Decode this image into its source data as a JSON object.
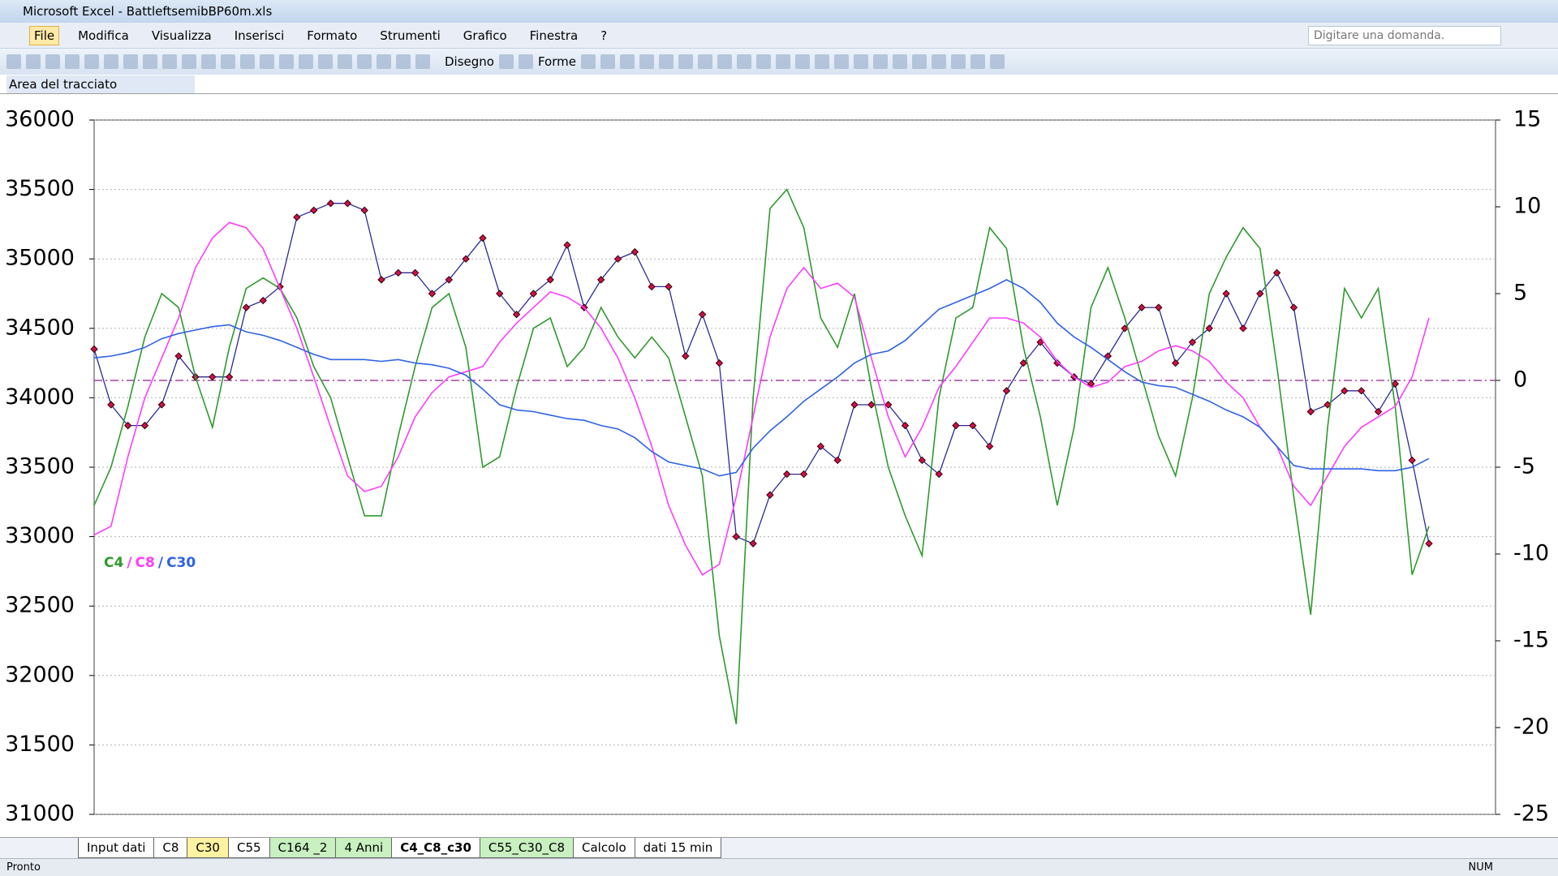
{
  "window": {
    "title": "Microsoft Excel - BattleftsemibBP60m.xls"
  },
  "menu": [
    "File",
    "Modifica",
    "Visualizza",
    "Inserisci",
    "Formato",
    "Strumenti",
    "Grafico",
    "Finestra",
    "?"
  ],
  "help_box": "Digitare una domanda.",
  "toolbar": {
    "draw": "Disegno",
    "shapes": "Forme"
  },
  "name_box": "Area del tracciato",
  "sheet_tabs": [
    {
      "label": "Input dati",
      "color": "#ffffff"
    },
    {
      "label": "C8",
      "color": "#ffffff"
    },
    {
      "label": "C30",
      "color": "#fff2a0"
    },
    {
      "label": "C55",
      "color": "#ffffff"
    },
    {
      "label": "C164 _2",
      "color": "#c8f0c0"
    },
    {
      "label": "4 Anni",
      "color": "#c8f0c0"
    },
    {
      "label": "C4_C8_c30",
      "color": "#ffffff",
      "active": true
    },
    {
      "label": "C55_C30_C8",
      "color": "#c8f0c0"
    },
    {
      "label": "Calcolo",
      "color": "#ffffff"
    },
    {
      "label": "dati 15 min",
      "color": "#ffffff"
    }
  ],
  "status": {
    "left": "Pronto",
    "right": "NUM"
  },
  "chart_data": {
    "type": "line",
    "ylim": [
      31000,
      36000
    ],
    "yticks": [
      31000,
      31500,
      32000,
      32500,
      33000,
      33500,
      34000,
      34500,
      35000,
      35500,
      36000
    ],
    "y2lim": [
      -25,
      15
    ],
    "y2ticks": [
      -25,
      -20,
      -15,
      -10,
      -5,
      0,
      5,
      10,
      15
    ],
    "grid": true,
    "reference_line": {
      "axis": "y2",
      "value": 0,
      "color": "#a040a0"
    },
    "legend_separators": [
      "/",
      "/"
    ],
    "series": [
      {
        "color": "#2a2a9a",
        "marker_color": "#d0104c",
        "values": [
          34350,
          33950,
          33800,
          33800,
          33950,
          34300,
          34150,
          34150,
          34150,
          34650,
          34700,
          34800,
          35300,
          35350,
          35400,
          35400,
          35350,
          34850,
          34900,
          34900,
          34750,
          34850,
          35000,
          35150,
          34750,
          34600,
          34750,
          34850,
          35100,
          34650,
          34850,
          35000,
          35050,
          34800,
          34800,
          34300,
          34600,
          34250,
          33000,
          32950,
          33300,
          33450,
          33450,
          33650,
          33550,
          33950,
          33950,
          33950,
          33800,
          33550,
          33450,
          33800,
          33800,
          33650,
          34050,
          34250,
          34400,
          34250,
          34150,
          34100,
          34300,
          34500,
          34650,
          34650,
          34250,
          34400,
          34500,
          34750,
          34500,
          34750,
          34900,
          34650,
          33900,
          33950,
          34050,
          34050,
          33900,
          34100,
          33550,
          32950
        ]
      },
      {
        "name": "C4",
        "color": "#2e9a2e",
        "axis": "y2",
        "values": [
          -7.2,
          -5,
          -1.5,
          2.5,
          5,
          4.2,
          0.2,
          -2.7,
          1.9,
          5.3,
          5.9,
          5.3,
          3.6,
          0.8,
          -1,
          -4.4,
          -7.8,
          -7.8,
          -3.2,
          0.8,
          4.2,
          5,
          1.9,
          -5,
          -4.4,
          -0.4,
          3,
          3.6,
          0.8,
          1.9,
          4.2,
          2.5,
          1.3,
          2.5,
          1.3,
          -2.1,
          -5.5,
          -14.7,
          -19.8,
          -1,
          9.9,
          11,
          8.8,
          3.6,
          1.9,
          5,
          -0.4,
          -5,
          -7.8,
          -10.1,
          -1,
          3.6,
          4.2,
          8.8,
          7.6,
          1.9,
          -2.1,
          -7.2,
          -2.7,
          4.2,
          6.5,
          3.6,
          0.2,
          -3.2,
          -5.5,
          -1,
          5,
          7.1,
          8.8,
          7.6,
          0.8,
          -6.7,
          -13.5,
          -2.7,
          5.3,
          3.6,
          5.3,
          -1.5,
          -11.2,
          -8.4
        ]
      },
      {
        "name": "C8",
        "color": "#ff3cff",
        "axis": "y2",
        "values": [
          -8.9,
          -8.4,
          -4.4,
          -1,
          1.3,
          3.6,
          6.5,
          8.2,
          9.1,
          8.8,
          7.6,
          5.3,
          3,
          0.2,
          -2.7,
          -5.5,
          -6.4,
          -6.1,
          -4.4,
          -2.1,
          -0.7,
          0.2,
          0.5,
          0.8,
          2.2,
          3.3,
          4.2,
          5.1,
          4.8,
          4.2,
          3,
          1.3,
          -1,
          -3.8,
          -7.2,
          -9.5,
          -11.2,
          -10.6,
          -6.7,
          -2.1,
          2.5,
          5.3,
          6.5,
          5.3,
          5.6,
          4.8,
          1.3,
          -2.1,
          -4.4,
          -2.7,
          -0.4,
          0.8,
          2.2,
          3.6,
          3.6,
          3.3,
          2.5,
          1.1,
          0.2,
          -0.4,
          -0.1,
          0.8,
          1.1,
          1.7,
          2,
          1.7,
          1.1,
          -0.1,
          -1,
          -2.7,
          -3.8,
          -6.1,
          -7.2,
          -5.5,
          -3.8,
          -2.7,
          -2.1,
          -1.5,
          0.2,
          3.6
        ]
      },
      {
        "name": "C30",
        "color": "#2f62e6",
        "axis": "y2",
        "values": [
          1.3,
          1.4,
          1.6,
          1.9,
          2.4,
          2.7,
          2.9,
          3.1,
          3.2,
          2.8,
          2.6,
          2.3,
          1.9,
          1.5,
          1.2,
          1.2,
          1.2,
          1.1,
          1.2,
          1,
          0.9,
          0.7,
          0.3,
          -0.5,
          -1.4,
          -1.7,
          -1.8,
          -2,
          -2.2,
          -2.3,
          -2.6,
          -2.8,
          -3.3,
          -4.1,
          -4.7,
          -4.9,
          -5.1,
          -5.5,
          -5.3,
          -3.9,
          -2.9,
          -2.1,
          -1.2,
          -0.5,
          0.2,
          1,
          1.5,
          1.7,
          2.3,
          3.2,
          4.1,
          4.5,
          4.9,
          5.3,
          5.8,
          5.3,
          4.5,
          3.3,
          2.5,
          1.9,
          1.2,
          0.5,
          -0.1,
          -0.3,
          -0.4,
          -0.8,
          -1.2,
          -1.7,
          -2.1,
          -2.7,
          -3.8,
          -4.9,
          -5.1,
          -5.1,
          -5.1,
          -5.1,
          -5.2,
          -5.2,
          -5,
          -4.5
        ]
      }
    ]
  }
}
